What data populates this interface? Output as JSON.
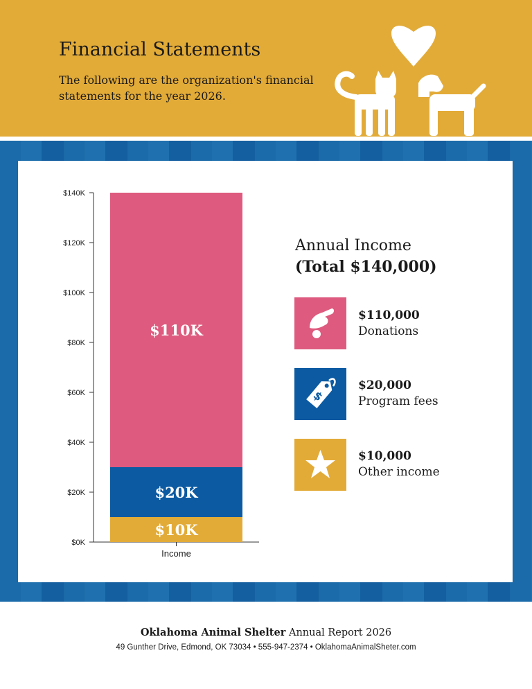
{
  "header": {
    "title": "Financial Statements",
    "subtitle": "The following are the organization's financial statements for the year 2026."
  },
  "colors": {
    "header": "#e2ab38",
    "band": "#1b6aa9",
    "donations": "#de5a7e",
    "program_fees": "#0b5aa2",
    "other_income": "#e2ab38"
  },
  "chart_data": {
    "type": "bar",
    "stacked": true,
    "categories": [
      "Income"
    ],
    "series": [
      {
        "name": "Other income",
        "values": [
          10000
        ],
        "label": "$10K",
        "color": "#e2ab38"
      },
      {
        "name": "Program fees",
        "values": [
          20000
        ],
        "label": "$20K",
        "color": "#0b5aa2"
      },
      {
        "name": "Donations",
        "values": [
          110000
        ],
        "label": "$110K",
        "color": "#de5a7e"
      }
    ],
    "ylim": [
      0,
      140000
    ],
    "yticks": [
      {
        "v": 0,
        "label": "$0K"
      },
      {
        "v": 20000,
        "label": "$20K"
      },
      {
        "v": 40000,
        "label": "$40K"
      },
      {
        "v": 60000,
        "label": "$60K"
      },
      {
        "v": 80000,
        "label": "$80K"
      },
      {
        "v": 100000,
        "label": "$100K"
      },
      {
        "v": 120000,
        "label": "$120K"
      },
      {
        "v": 140000,
        "label": "$140K"
      }
    ],
    "xlabel": "",
    "ylabel": "",
    "grid": false
  },
  "legend": {
    "title": "Annual Income",
    "total": "(Total $140,000)",
    "items": [
      {
        "amount": "$110,000",
        "label": "Donations",
        "icon": "hand-coin-icon",
        "color": "#de5a7e"
      },
      {
        "amount": "$20,000",
        "label": "Program fees",
        "icon": "price-tag-icon",
        "color": "#0b5aa2"
      },
      {
        "amount": "$10,000",
        "label": "Other income",
        "icon": "star-icon",
        "color": "#e2ab38"
      }
    ]
  },
  "footer": {
    "org": "Oklahoma Animal Shelter",
    "report": "Annual Report 2026",
    "contact": "49 Gunther Drive, Edmond, OK 73034 • 555-947-2374 • OklahomaAnimalSheter.com"
  }
}
